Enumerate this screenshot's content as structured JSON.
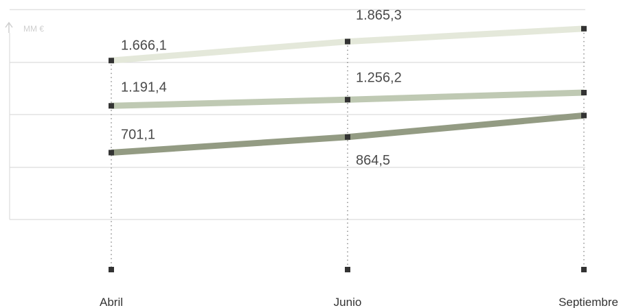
{
  "chart_data": {
    "type": "line",
    "title": "",
    "ylabel": "MM €",
    "xlabel": "",
    "categories": [
      "Abril",
      "Junio",
      "Septiembre"
    ],
    "ylim": [
      0,
      2200
    ],
    "grid": true,
    "series": [
      {
        "values": [
          1666.1,
          1865.3,
          2000
        ],
        "labels": [
          "1.666,1",
          "1.865,3",
          ""
        ],
        "color": "#e4e8da"
      },
      {
        "values": [
          1191.4,
          1256.2,
          1330
        ],
        "labels": [
          "1.191,4",
          "1.256,2",
          ""
        ],
        "color": "#bfc9b3"
      },
      {
        "values": [
          701.1,
          864.5,
          1090
        ],
        "labels": [
          "701,1",
          "864,5",
          ""
        ],
        "color": "#939b83"
      }
    ]
  },
  "colors": {
    "grid": "#dcdcdc",
    "marker": "#333333",
    "guide": "#555555"
  }
}
